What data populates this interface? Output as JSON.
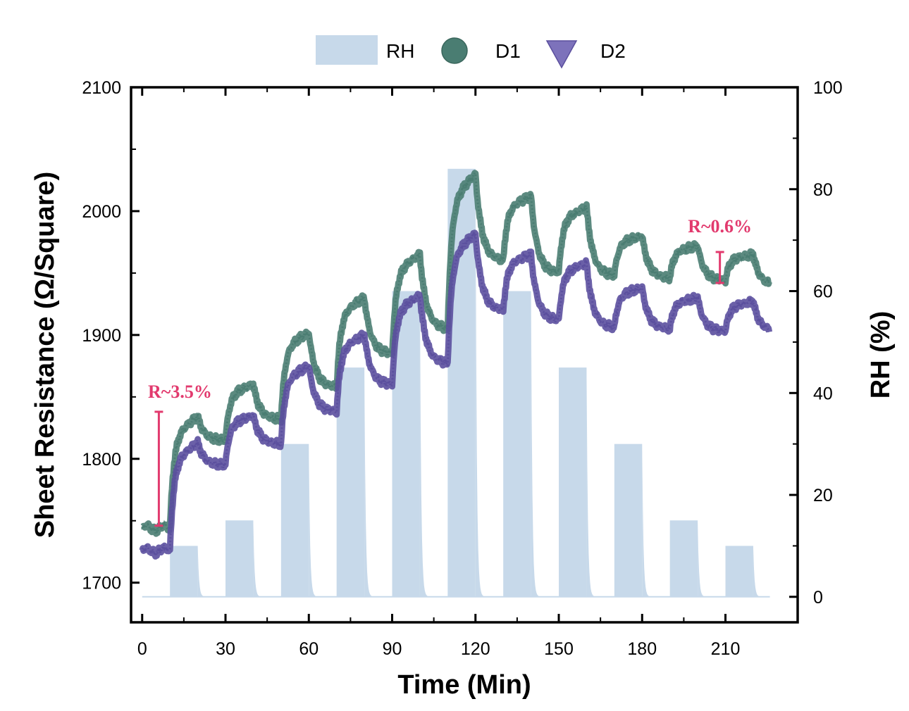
{
  "chart_data": {
    "type": "line",
    "xlabel": "Time (Min)",
    "ylabel_left": "Sheet Resistance (Ω/Square)",
    "ylabel_right": "RH (%)",
    "xlim": [
      -4,
      236
    ],
    "ylim_left": [
      1668,
      2100
    ],
    "ylim_right": [
      -5,
      100
    ],
    "x_ticks": [
      0,
      30,
      60,
      90,
      120,
      150,
      180,
      210
    ],
    "y_ticks_left": [
      1700,
      1800,
      1900,
      2000,
      2100
    ],
    "y_ticks_right": [
      0,
      20,
      40,
      60,
      80,
      100
    ],
    "legend": [
      "RH",
      "D1",
      "D2"
    ],
    "legend_position": "top",
    "rh_bars": [
      {
        "start": 10,
        "end": 20,
        "rh": 10
      },
      {
        "start": 30,
        "end": 40,
        "rh": 15
      },
      {
        "start": 50,
        "end": 60,
        "rh": 30
      },
      {
        "start": 70,
        "end": 80,
        "rh": 45
      },
      {
        "start": 90,
        "end": 100,
        "rh": 60
      },
      {
        "start": 110,
        "end": 120,
        "rh": 84
      },
      {
        "start": 130,
        "end": 140,
        "rh": 60
      },
      {
        "start": 150,
        "end": 160,
        "rh": 45
      },
      {
        "start": 170,
        "end": 180,
        "rh": 30
      },
      {
        "start": 190,
        "end": 200,
        "rh": 15
      },
      {
        "start": 210,
        "end": 220,
        "rh": 10
      }
    ],
    "series": [
      {
        "name": "D1",
        "color": "#4a7d72",
        "cycles": [
          {
            "t0": 10,
            "base": 1744,
            "peak": 1834,
            "end": 1815
          },
          {
            "t0": 30,
            "base": 1815,
            "peak": 1860,
            "end": 1832
          },
          {
            "t0": 50,
            "base": 1832,
            "peak": 1902,
            "end": 1858
          },
          {
            "t0": 70,
            "base": 1858,
            "peak": 1930,
            "end": 1885
          },
          {
            "t0": 90,
            "base": 1885,
            "peak": 1965,
            "end": 1905
          },
          {
            "t0": 110,
            "base": 1905,
            "peak": 2030,
            "end": 1960
          },
          {
            "t0": 130,
            "base": 1960,
            "peak": 2012,
            "end": 1950
          },
          {
            "t0": 150,
            "base": 1950,
            "peak": 2003,
            "end": 1948
          },
          {
            "t0": 170,
            "base": 1948,
            "peak": 1980,
            "end": 1946
          },
          {
            "t0": 190,
            "base": 1946,
            "peak": 1972,
            "end": 1944
          },
          {
            "t0": 210,
            "base": 1944,
            "peak": 1965,
            "end": 1940
          }
        ]
      },
      {
        "name": "D2",
        "color": "#5b4f9e",
        "cycles": [
          {
            "t0": 10,
            "base": 1726,
            "peak": 1813,
            "end": 1795
          },
          {
            "t0": 30,
            "base": 1795,
            "peak": 1835,
            "end": 1812
          },
          {
            "t0": 50,
            "base": 1812,
            "peak": 1875,
            "end": 1838
          },
          {
            "t0": 70,
            "base": 1838,
            "peak": 1900,
            "end": 1860
          },
          {
            "t0": 90,
            "base": 1860,
            "peak": 1932,
            "end": 1877
          },
          {
            "t0": 110,
            "base": 1877,
            "peak": 1982,
            "end": 1920
          },
          {
            "t0": 130,
            "base": 1920,
            "peak": 1965,
            "end": 1912
          },
          {
            "t0": 150,
            "base": 1912,
            "peak": 1958,
            "end": 1906
          },
          {
            "t0": 170,
            "base": 1906,
            "peak": 1938,
            "end": 1905
          },
          {
            "t0": 190,
            "base": 1905,
            "peak": 1930,
            "end": 1903
          },
          {
            "t0": 210,
            "base": 1903,
            "peak": 1927,
            "end": 1903
          }
        ]
      }
    ],
    "annotations": [
      {
        "text": "R~3.5%",
        "x": 6,
        "y_low": 1746,
        "y_high": 1838
      },
      {
        "text": "R~0.6%",
        "x": 208,
        "y_low": 1942,
        "y_high": 1967
      }
    ]
  },
  "colors": {
    "rh_fill": "#c7d9ea",
    "d1": "#4a7d72",
    "d2": "#5b4f9e",
    "annotation": "#e23a6e"
  }
}
